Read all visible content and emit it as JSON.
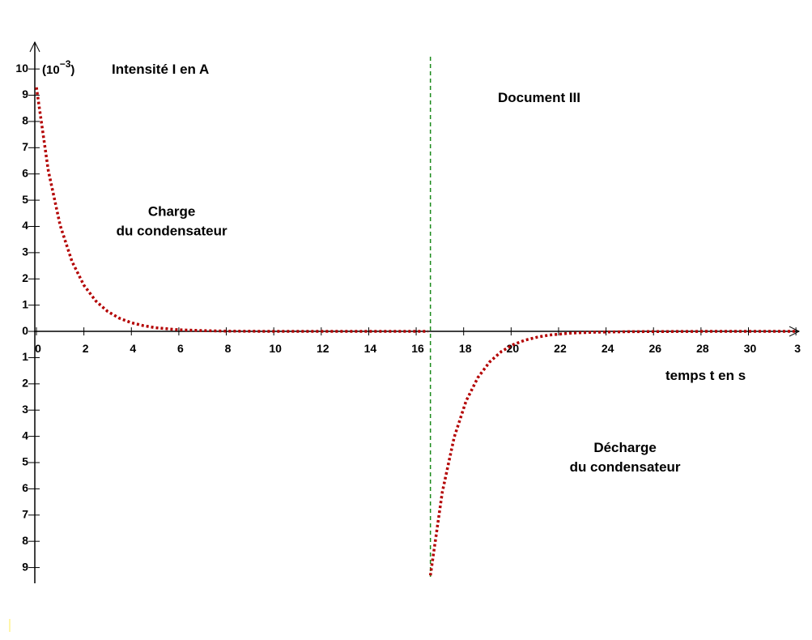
{
  "chart_data": {
    "type": "line",
    "title": "Document III",
    "y_label": "Intensité I en A",
    "y_unit_prefix": "(10",
    "y_unit_exponent": "−3",
    "y_unit_suffix": ")",
    "x_label": "temps t en s",
    "annotations": [
      {
        "lines": [
          "Charge",
          "du condensateur"
        ],
        "x": 5.7,
        "y": 4.4
      },
      {
        "lines": [
          "Décharge",
          "du condensateur"
        ],
        "x": 24.8,
        "y": -4.6
      }
    ],
    "switch_time": 16.6,
    "switch_color": "#1a8a1a",
    "xlim": [
      0,
      32.2
    ],
    "ylim": [
      -9.6,
      10.9
    ],
    "xticks": [
      0,
      2,
      4,
      6,
      8,
      10,
      12,
      14,
      16,
      18,
      20,
      22,
      24,
      26,
      28,
      30,
      {
        "value": 32,
        "label": "3"
      }
    ],
    "yticks": [
      0,
      1,
      2,
      3,
      4,
      5,
      6,
      7,
      8,
      9,
      10,
      {
        "value": -1,
        "label": "1"
      },
      {
        "value": -2,
        "label": "2"
      },
      {
        "value": -3,
        "label": "3"
      },
      {
        "value": -4,
        "label": "4"
      },
      {
        "value": -5,
        "label": "5"
      },
      {
        "value": -6,
        "label": "6"
      },
      {
        "value": -7,
        "label": "7"
      },
      {
        "value": -8,
        "label": "8"
      },
      {
        "value": -9,
        "label": "9"
      }
    ],
    "series": [
      {
        "color": "#b30000",
        "x": [
          0,
          0.5,
          1,
          1.5,
          2,
          2.5,
          3,
          3.5,
          4,
          4.5,
          5,
          6,
          7,
          8,
          10,
          12,
          14,
          16.5
        ],
        "values": [
          9.3,
          6.13,
          4.04,
          2.66,
          1.76,
          1.16,
          0.76,
          0.5,
          0.33,
          0.22,
          0.14,
          0.06,
          0.03,
          0.01,
          0,
          0,
          0,
          0
        ]
      },
      {
        "color": "#b30000",
        "x": [
          16.6,
          17.1,
          17.6,
          18.1,
          18.6,
          19.1,
          19.6,
          20.1,
          20.6,
          21.1,
          21.6,
          22.6,
          23.6,
          25,
          28,
          32
        ],
        "values": [
          -9.3,
          -6.13,
          -4.04,
          -2.66,
          -1.76,
          -1.16,
          -0.76,
          -0.5,
          -0.33,
          -0.22,
          -0.14,
          -0.06,
          -0.03,
          -0.01,
          0,
          0
        ]
      }
    ]
  }
}
